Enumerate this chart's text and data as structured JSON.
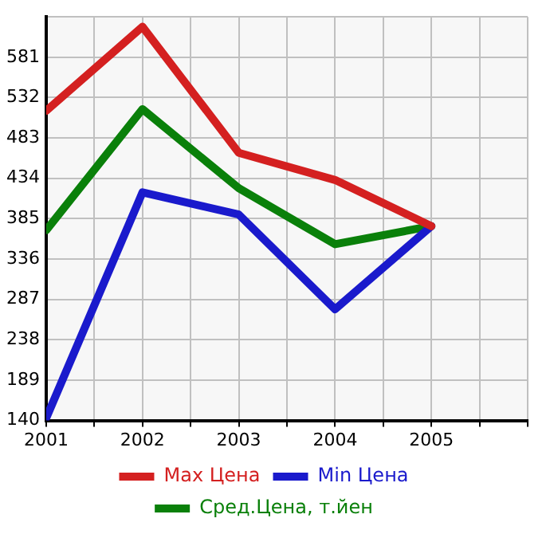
{
  "chart_data": {
    "type": "line",
    "x": [
      2001,
      2002,
      2003,
      2004,
      2005
    ],
    "series": [
      {
        "name": "Max Цена",
        "color": "#d42020",
        "values": [
          516,
          618,
          465,
          432,
          376
        ]
      },
      {
        "name": "Min Цена",
        "color": "#1a1acc",
        "values": [
          143,
          417,
          390,
          275,
          376
        ]
      },
      {
        "name": "Сред.Цена, т.йен",
        "color": "#0a800a",
        "values": [
          371,
          518,
          422,
          354,
          376
        ]
      }
    ],
    "xlim": [
      2001,
      2006
    ],
    "xticks": [
      2001,
      {
        "value": 2001.5,
        "label": null
      },
      2002,
      {
        "value": 2002.5,
        "label": null
      },
      2003,
      {
        "value": 2003.5,
        "label": null
      },
      2004,
      {
        "value": 2004.5,
        "label": null
      },
      2005,
      {
        "value": 2005.5,
        "label": null
      },
      {
        "value": 2006,
        "label": null
      }
    ],
    "ylim": [
      140,
      630
    ],
    "yticks": [
      140,
      189,
      238,
      287,
      336,
      385,
      434,
      483,
      532,
      581,
      {
        "value": 630,
        "label": null
      }
    ],
    "grid": true,
    "legend": "bottom",
    "marker": "none",
    "line_style": "solid"
  }
}
